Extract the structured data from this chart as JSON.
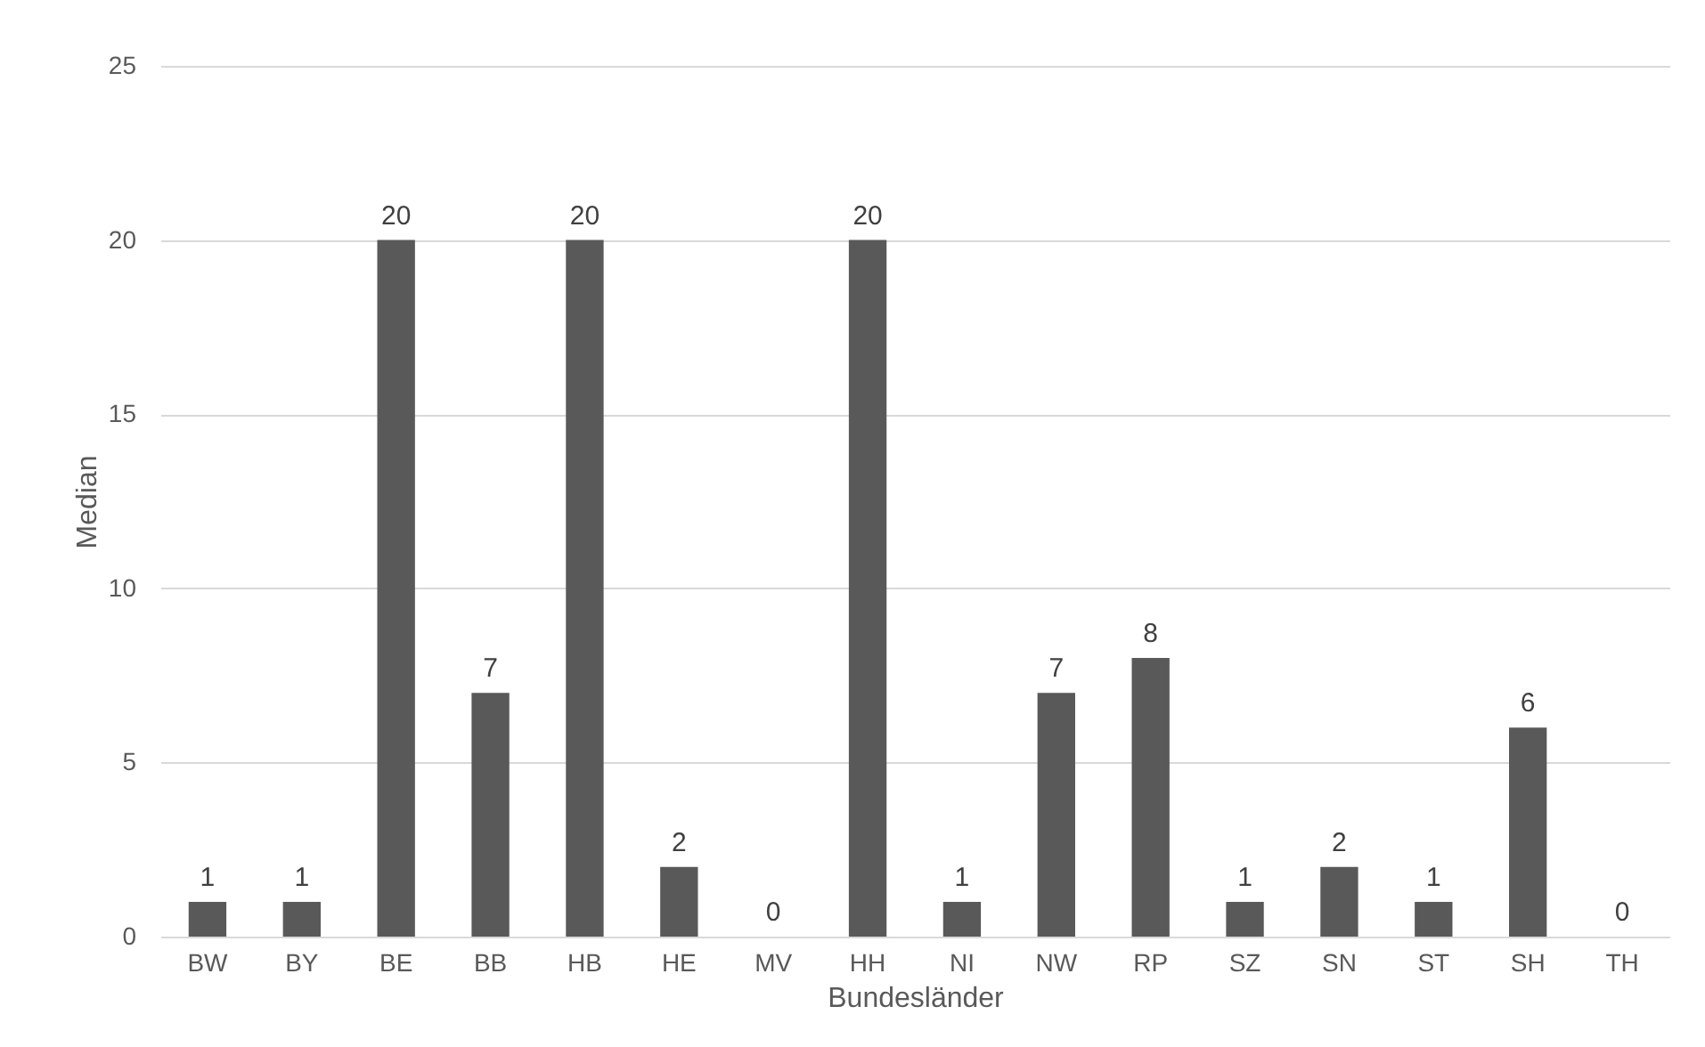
{
  "chart_data": {
    "type": "bar",
    "xlabel": "Bundesländer",
    "ylabel": "Median",
    "categories": [
      "BW",
      "BY",
      "BE",
      "BB",
      "HB",
      "HE",
      "MV",
      "HH",
      "NI",
      "NW",
      "RP",
      "SZ",
      "SN",
      "ST",
      "SH",
      "TH"
    ],
    "values": [
      1,
      1,
      20,
      7,
      20,
      2,
      0,
      20,
      1,
      7,
      8,
      1,
      2,
      1,
      6,
      0
    ],
    "color": "#595959",
    "ylim": [
      0,
      25
    ],
    "yticks": [
      0,
      5,
      10,
      15,
      20,
      25
    ],
    "grid": "y",
    "data_labels": true
  }
}
